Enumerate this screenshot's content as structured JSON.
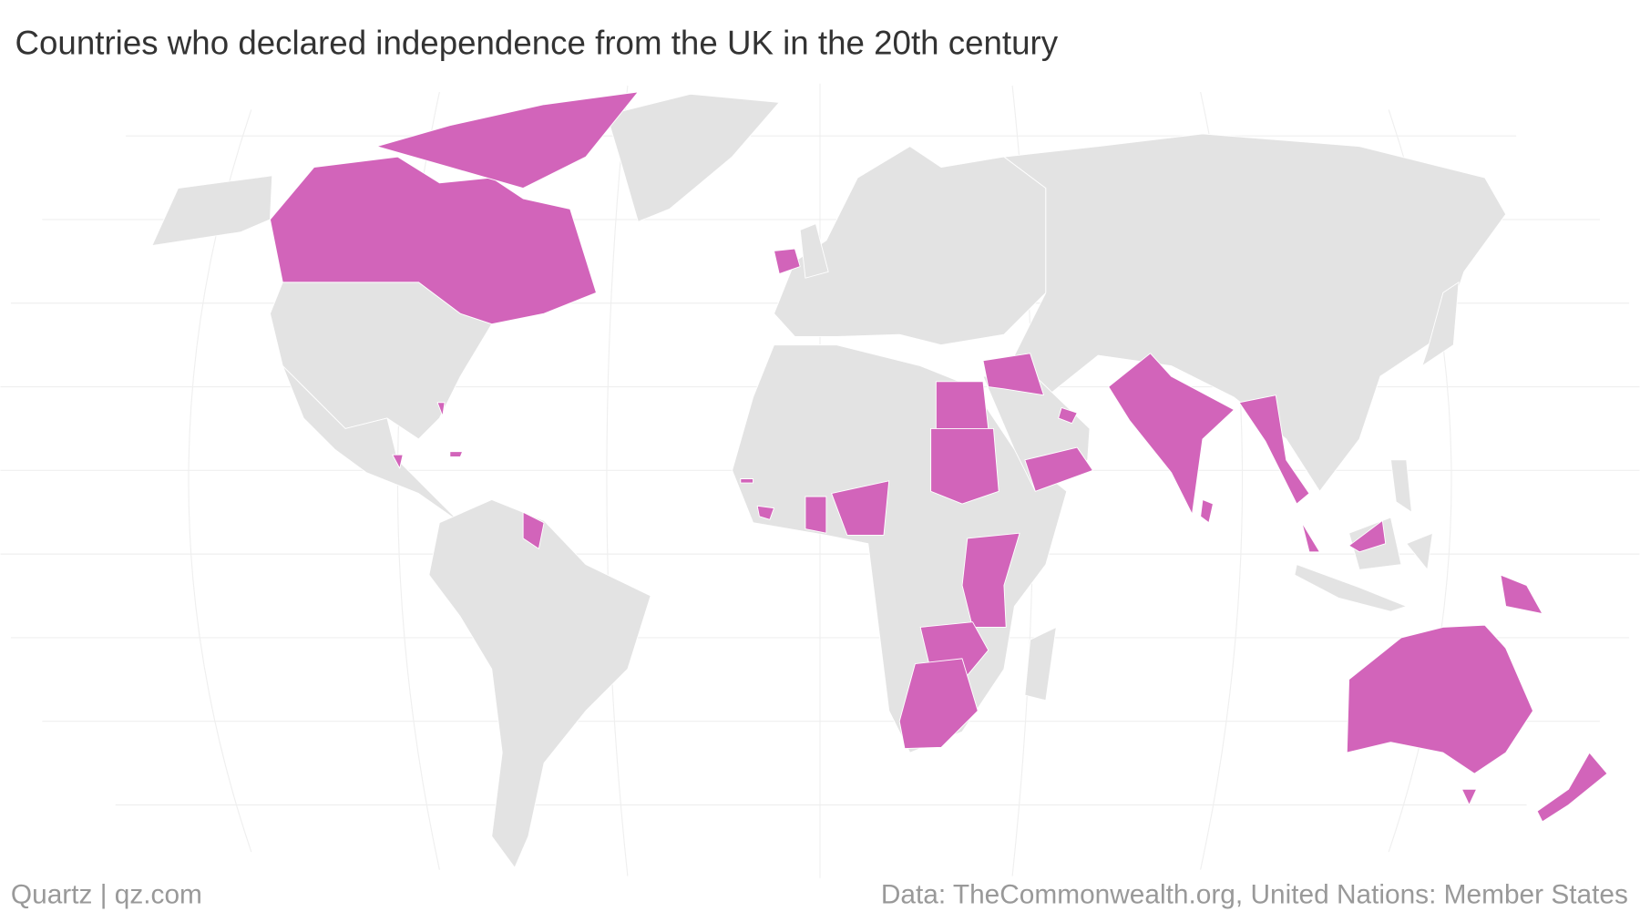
{
  "header": {
    "title": "Countries who declared independence from the UK in the 20th century"
  },
  "footer": {
    "source": "Quartz | qz.com",
    "credit": "Data: TheCommonwealth.org, United Nations: Member States"
  },
  "map": {
    "land_color": "#e3e3e3",
    "highlight_color": "#d264ba"
  }
}
